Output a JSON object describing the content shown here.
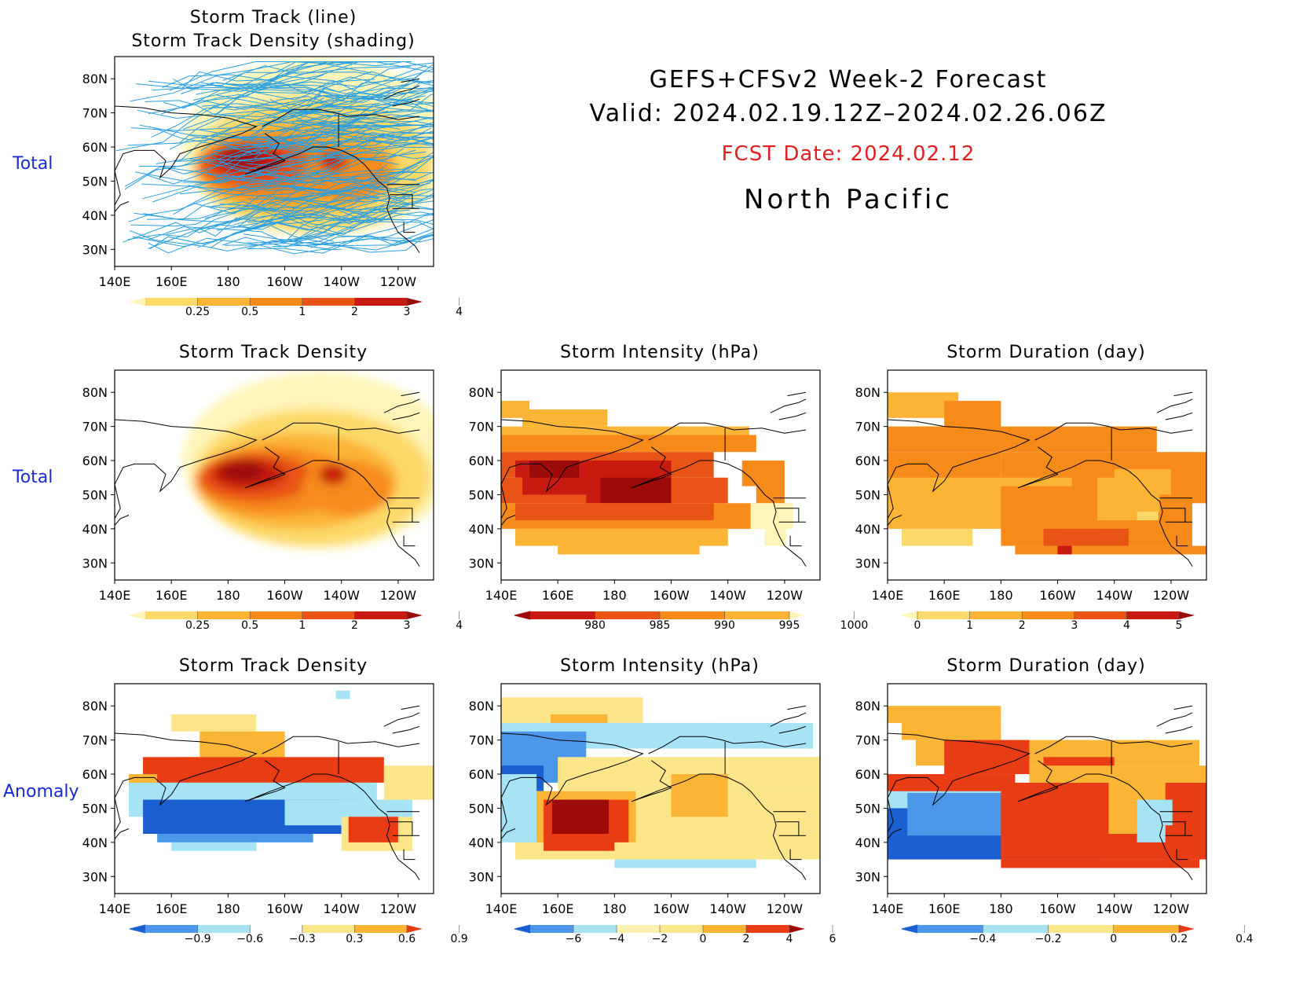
{
  "header": {
    "title_line1": "GEFS+CFSv2 Week-2 Forecast",
    "title_line2": "Valid: 2024.02.19.12Z–2024.02.26.06Z",
    "fcst_date": "FCST Date: 2024.02.12",
    "region": "North Pacific",
    "fcst_color": "#e02020"
  },
  "row_labels": {
    "top": "Total",
    "middle": "Total",
    "bottom": "Anomaly"
  },
  "axes": {
    "lat_labels": [
      "80N",
      "70N",
      "60N",
      "50N",
      "40N",
      "30N"
    ],
    "lon_labels": [
      "140E",
      "160E",
      "180",
      "160W",
      "140W",
      "120W"
    ]
  },
  "panels": {
    "track": {
      "title_line1": "Storm Track (line)",
      "title_line2": "Storm Track Density (shading)",
      "track_color": "#2a9fe0"
    },
    "density_total": {
      "title": "Storm Track Density"
    },
    "intensity_total": {
      "title": "Storm Intensity (hPa)"
    },
    "duration_total": {
      "title": "Storm Duration (day)"
    },
    "density_anom": {
      "title": "Storm Track Density"
    },
    "intensity_anom": {
      "title": "Storm Intensity (hPa)"
    },
    "duration_anom": {
      "title": "Storm Duration (day)"
    }
  },
  "colorbars": {
    "density": {
      "labels": [
        "0.25",
        "0.5",
        "1",
        "2",
        "3",
        "4"
      ],
      "colors": [
        "#fff5b8",
        "#fdd96b",
        "#fbb434",
        "#f78b1a",
        "#e85316",
        "#c81a10",
        "#9c0a0a"
      ]
    },
    "intensity": {
      "labels": [
        "980",
        "985",
        "990",
        "995",
        "1000"
      ],
      "colors": [
        "#9c0a0a",
        "#c81a10",
        "#e85316",
        "#f78b1a",
        "#fbb434",
        "#fff5b8"
      ]
    },
    "duration": {
      "labels": [
        "0",
        "1",
        "2",
        "3",
        "4",
        "5"
      ],
      "colors": [
        "#fff5b8",
        "#fdd96b",
        "#fbb434",
        "#f78b1a",
        "#e85316",
        "#c81a10",
        "#9c0a0a"
      ]
    },
    "density_anom": {
      "labels": [
        "−0.9",
        "−0.6",
        "−0.3",
        "0.3",
        "0.6",
        "0.9"
      ],
      "colors": [
        "#1b5fd1",
        "#4d97ea",
        "#a5e3f5",
        "#ffffff",
        "#fde58a",
        "#fbb434",
        "#e83d14"
      ]
    },
    "intensity_anom": {
      "labels": [
        "−6",
        "−4",
        "−2",
        "0",
        "2",
        "4",
        "6"
      ],
      "colors": [
        "#1b5fd1",
        "#4d97ea",
        "#a5e3f5",
        "#fff2b0",
        "#fde58a",
        "#fbb434",
        "#e83d14",
        "#9c0a0a"
      ]
    },
    "duration_anom": {
      "labels": [
        "−0.4",
        "−0.2",
        "0",
        "0.2",
        "0.4"
      ],
      "colors": [
        "#1b5fd1",
        "#4d97ea",
        "#a5e3f5",
        "#fde58a",
        "#fbb434",
        "#e83d14"
      ]
    }
  }
}
